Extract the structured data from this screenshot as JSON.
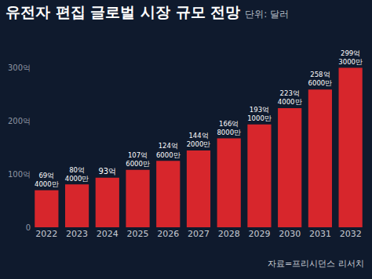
{
  "chart_data": {
    "type": "bar",
    "title": "유전자 편집 글로벌 시장 규모 전망",
    "subtitle": "단위: 달러",
    "source": "자료=프리시던스 리서치",
    "categories": [
      "2022",
      "2023",
      "2024",
      "2025",
      "2026",
      "2027",
      "2028",
      "2029",
      "2030",
      "2031",
      "2032"
    ],
    "values": [
      6940000000,
      8040000000,
      9300000000,
      10760000000,
      12460000000,
      14420000000,
      16680000000,
      19310000000,
      22340000000,
      25860000000,
      29930000000
    ],
    "value_labels": [
      "69억\n4000만",
      "80억\n4000만",
      "93억",
      "107억\n6000만",
      "124억\n6000만",
      "144억\n2000만",
      "166억\n8000만",
      "193억\n1000만",
      "223억\n4000만",
      "258억\n6000만",
      "299억\n3000만"
    ],
    "color": "#d7262c",
    "ylim": [
      0,
      30000000000
    ],
    "yticks": [
      0,
      {
        "value": 10000000000,
        "label": "100억"
      },
      {
        "value": 20000000000,
        "label": "200억"
      },
      {
        "value": 30000000000,
        "label": "300억"
      }
    ],
    "grid": false,
    "data_labels": true
  }
}
